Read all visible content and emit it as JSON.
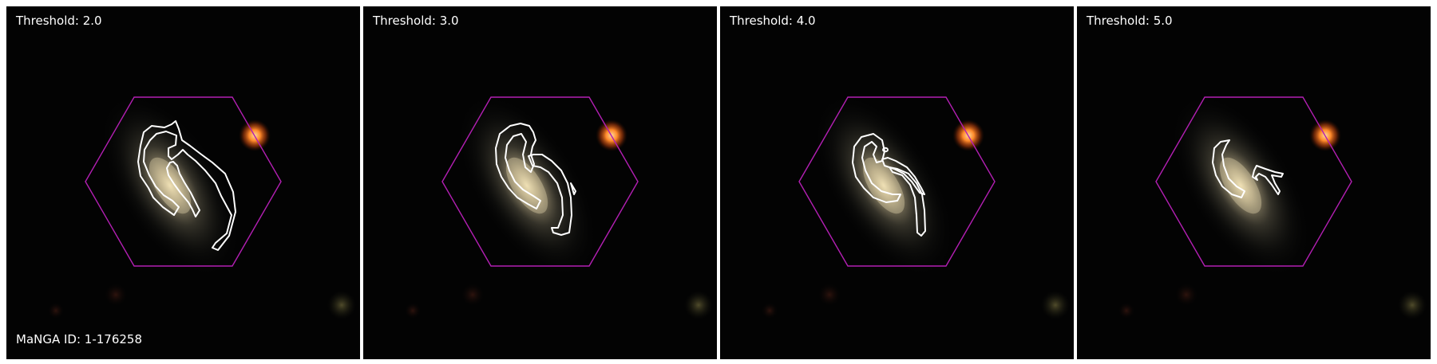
{
  "panels": [
    {
      "label": "Threshold: 2.0"
    },
    {
      "label": "Threshold: 3.0"
    },
    {
      "label": "Threshold: 4.0"
    },
    {
      "label": "Threshold: 5.0"
    }
  ],
  "galaxy_id_label": "MaNGA ID: 1-176258",
  "colors": {
    "background": "#030303",
    "hexagon": "#b31fb3",
    "contour": "#ffffff",
    "bright_star": "#ff8a2a",
    "galaxy_core": "#e7d6a6"
  }
}
